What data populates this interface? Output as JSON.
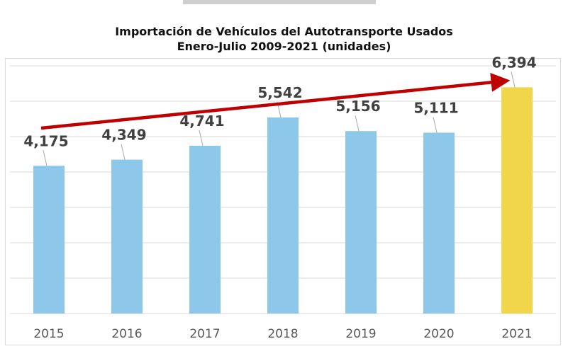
{
  "chart_data": {
    "type": "bar",
    "title": "Importación de Vehículos del Autotransporte Usados",
    "subtitle": "Enero-Julio 2009-2021 (unidades)",
    "categories": [
      "2015",
      "2016",
      "2017",
      "2018",
      "2019",
      "2020",
      "2021"
    ],
    "values": [
      4175,
      4349,
      4741,
      5542,
      5156,
      5111,
      6394
    ],
    "data_labels": [
      "4,175",
      "4,349",
      "4,741",
      "5,542",
      "5,156",
      "5,111",
      "6,394"
    ],
    "ylim": [
      0,
      7000
    ],
    "grid": true,
    "colors": {
      "default": "#8DC8EA",
      "highlight": "#F1D54B",
      "trend_arrow": "#C00000",
      "label": "#404040"
    },
    "highlight_category": "2021",
    "annotation": "trend arrow upward from 2015 to 2021"
  }
}
